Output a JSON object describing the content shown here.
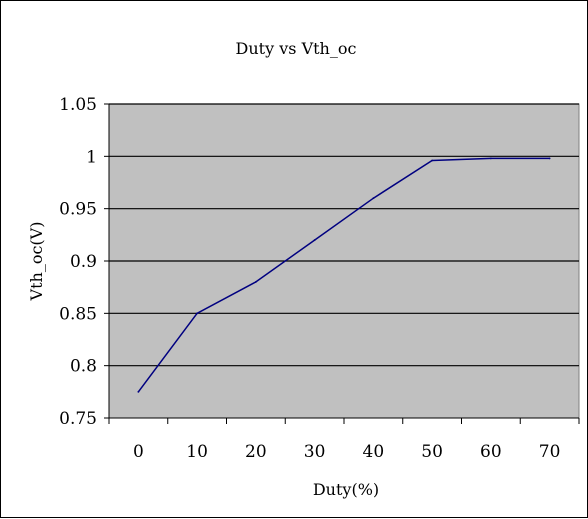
{
  "chart_data": {
    "type": "line",
    "title": "Duty vs Vth_oc",
    "xlabel": "Duty(%)",
    "ylabel": "Vth_oc(V)",
    "x_tick_labels": [
      "0",
      "10",
      "20",
      "30",
      "40",
      "50",
      "60",
      "70"
    ],
    "y_tick_labels": [
      "0.75",
      "0.8",
      "0.85",
      "0.9",
      "0.95",
      "1",
      "1.05"
    ],
    "xlim": [
      -5,
      75
    ],
    "ylim": [
      0.75,
      1.05
    ],
    "grid": true,
    "plot_background": "#c0c0c0",
    "series": [
      {
        "color": "#000080",
        "x": [
          0,
          10,
          20,
          30,
          40,
          50,
          60,
          70
        ],
        "y": [
          0.775,
          0.85,
          0.88,
          0.92,
          0.96,
          0.996,
          0.998,
          0.998
        ]
      }
    ]
  }
}
